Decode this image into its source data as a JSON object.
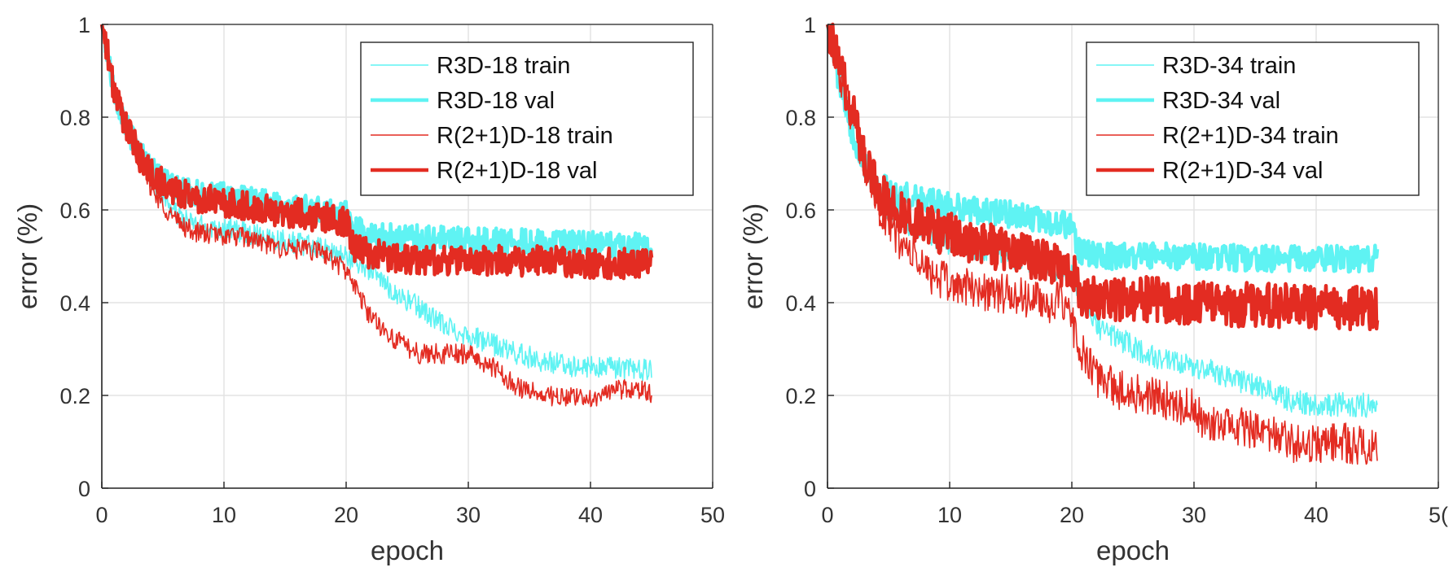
{
  "chart_data": [
    {
      "type": "line",
      "title": "",
      "xlabel": "epoch",
      "ylabel": "error (%)",
      "xlim": [
        0,
        50
      ],
      "ylim": [
        0,
        1
      ],
      "xticks": [
        "0",
        "10",
        "20",
        "30",
        "40",
        "50"
      ],
      "yticks": [
        "0",
        "0.2",
        "0.4",
        "0.6",
        "0.8",
        "1"
      ],
      "grid": true,
      "legend_position": "top-right",
      "series": [
        {
          "name": "R3D-18 train",
          "color": "#5ff3f3",
          "style": "thin",
          "noise": 0.011,
          "points": [
            [
              0,
              1.0
            ],
            [
              1,
              0.86
            ],
            [
              2,
              0.78
            ],
            [
              3,
              0.72
            ],
            [
              4,
              0.67
            ],
            [
              5,
              0.63
            ],
            [
              6,
              0.595
            ],
            [
              7,
              0.575
            ],
            [
              8,
              0.565
            ],
            [
              10,
              0.56
            ],
            [
              12,
              0.55
            ],
            [
              15,
              0.535
            ],
            [
              18,
              0.515
            ],
            [
              20,
              0.5
            ],
            [
              22,
              0.47
            ],
            [
              24,
              0.42
            ],
            [
              26,
              0.39
            ],
            [
              28,
              0.35
            ],
            [
              30,
              0.33
            ],
            [
              32,
              0.31
            ],
            [
              34,
              0.29
            ],
            [
              36,
              0.275
            ],
            [
              38,
              0.265
            ],
            [
              40,
              0.26
            ],
            [
              42,
              0.26
            ],
            [
              44,
              0.255
            ],
            [
              45,
              0.255
            ]
          ]
        },
        {
          "name": "R3D-18 val",
          "color": "#5ff3f3",
          "style": "thick",
          "noise": 0.013,
          "points": [
            [
              0,
              1.0
            ],
            [
              1,
              0.86
            ],
            [
              2,
              0.78
            ],
            [
              3,
              0.73
            ],
            [
              4,
              0.69
            ],
            [
              5,
              0.665
            ],
            [
              6,
              0.645
            ],
            [
              8,
              0.635
            ],
            [
              10,
              0.63
            ],
            [
              12,
              0.62
            ],
            [
              15,
              0.61
            ],
            [
              18,
              0.6
            ],
            [
              20,
              0.59
            ],
            [
              20.6,
              0.56
            ],
            [
              22,
              0.545
            ],
            [
              25,
              0.54
            ],
            [
              30,
              0.535
            ],
            [
              35,
              0.53
            ],
            [
              40,
              0.525
            ],
            [
              45,
              0.52
            ]
          ]
        },
        {
          "name": "R(2+1)D-18 train",
          "color": "#e32c22",
          "style": "thin",
          "noise": 0.01,
          "points": [
            [
              0,
              1.0
            ],
            [
              1,
              0.87
            ],
            [
              2,
              0.78
            ],
            [
              3,
              0.71
            ],
            [
              4,
              0.65
            ],
            [
              5,
              0.61
            ],
            [
              6,
              0.58
            ],
            [
              7,
              0.56
            ],
            [
              8,
              0.55
            ],
            [
              10,
              0.545
            ],
            [
              12,
              0.54
            ],
            [
              14,
              0.52
            ],
            [
              16,
              0.515
            ],
            [
              18,
              0.51
            ],
            [
              20,
              0.47
            ],
            [
              21,
              0.42
            ],
            [
              22,
              0.37
            ],
            [
              24,
              0.32
            ],
            [
              26,
              0.29
            ],
            [
              28,
              0.29
            ],
            [
              30,
              0.29
            ],
            [
              32,
              0.26
            ],
            [
              34,
              0.22
            ],
            [
              36,
              0.2
            ],
            [
              38,
              0.195
            ],
            [
              40,
              0.195
            ],
            [
              42,
              0.21
            ],
            [
              44,
              0.215
            ],
            [
              45,
              0.2
            ]
          ]
        },
        {
          "name": "R(2+1)D-18 val",
          "color": "#e32c22",
          "style": "thick",
          "noise": 0.015,
          "points": [
            [
              0,
              1.0
            ],
            [
              1,
              0.86
            ],
            [
              2,
              0.78
            ],
            [
              3,
              0.72
            ],
            [
              4,
              0.68
            ],
            [
              5,
              0.655
            ],
            [
              6,
              0.64
            ],
            [
              8,
              0.625
            ],
            [
              10,
              0.615
            ],
            [
              12,
              0.605
            ],
            [
              15,
              0.595
            ],
            [
              18,
              0.585
            ],
            [
              20,
              0.575
            ],
            [
              20.6,
              0.52
            ],
            [
              22,
              0.505
            ],
            [
              25,
              0.495
            ],
            [
              30,
              0.49
            ],
            [
              35,
              0.49
            ],
            [
              40,
              0.485
            ],
            [
              45,
              0.485
            ]
          ]
        }
      ]
    },
    {
      "type": "line",
      "title": "",
      "xlabel": "epoch",
      "ylabel": "error (%)",
      "xlim": [
        0,
        50
      ],
      "ylim": [
        0,
        1
      ],
      "xticks": [
        "0",
        "10",
        "20",
        "30",
        "40",
        "5("
      ],
      "yticks": [
        "0",
        "0.2",
        "0.4",
        "0.6",
        "0.8",
        "1"
      ],
      "grid": true,
      "legend_position": "top-right",
      "series": [
        {
          "name": "R3D-34 train",
          "color": "#5ff3f3",
          "style": "thin",
          "noise": 0.012,
          "points": [
            [
              0,
              1.0
            ],
            [
              1,
              0.87
            ],
            [
              2,
              0.77
            ],
            [
              3,
              0.69
            ],
            [
              4,
              0.64
            ],
            [
              5,
              0.6
            ],
            [
              7,
              0.56
            ],
            [
              10,
              0.53
            ],
            [
              12,
              0.515
            ],
            [
              15,
              0.5
            ],
            [
              18,
              0.48
            ],
            [
              20,
              0.46
            ],
            [
              21,
              0.4
            ],
            [
              22,
              0.35
            ],
            [
              24,
              0.32
            ],
            [
              26,
              0.29
            ],
            [
              28,
              0.27
            ],
            [
              30,
              0.26
            ],
            [
              32,
              0.25
            ],
            [
              34,
              0.23
            ],
            [
              36,
              0.21
            ],
            [
              38,
              0.19
            ],
            [
              40,
              0.18
            ],
            [
              42,
              0.18
            ],
            [
              44,
              0.18
            ],
            [
              45,
              0.17
            ]
          ]
        },
        {
          "name": "R3D-34 val",
          "color": "#5ff3f3",
          "style": "thick",
          "noise": 0.013,
          "points": [
            [
              0,
              1.0
            ],
            [
              1,
              0.87
            ],
            [
              2,
              0.77
            ],
            [
              3,
              0.7
            ],
            [
              4,
              0.66
            ],
            [
              5,
              0.64
            ],
            [
              7,
              0.625
            ],
            [
              10,
              0.61
            ],
            [
              12,
              0.6
            ],
            [
              15,
              0.59
            ],
            [
              18,
              0.575
            ],
            [
              20,
              0.565
            ],
            [
              20.6,
              0.51
            ],
            [
              22,
              0.5
            ],
            [
              25,
              0.5
            ],
            [
              30,
              0.5
            ],
            [
              35,
              0.495
            ],
            [
              40,
              0.495
            ],
            [
              45,
              0.495
            ]
          ]
        },
        {
          "name": "R(2+1)D-34 train",
          "color": "#e32c22",
          "style": "thin",
          "noise": 0.02,
          "points": [
            [
              0,
              1.0
            ],
            [
              1,
              0.9
            ],
            [
              2,
              0.8
            ],
            [
              3,
              0.7
            ],
            [
              4,
              0.62
            ],
            [
              5,
              0.57
            ],
            [
              6,
              0.53
            ],
            [
              8,
              0.47
            ],
            [
              10,
              0.44
            ],
            [
              12,
              0.43
            ],
            [
              14,
              0.42
            ],
            [
              16,
              0.41
            ],
            [
              18,
              0.4
            ],
            [
              19,
              0.4
            ],
            [
              20,
              0.36
            ],
            [
              21,
              0.28
            ],
            [
              22,
              0.24
            ],
            [
              24,
              0.21
            ],
            [
              26,
              0.2
            ],
            [
              28,
              0.19
            ],
            [
              30,
              0.17
            ],
            [
              31,
              0.13
            ],
            [
              33,
              0.14
            ],
            [
              35,
              0.12
            ],
            [
              38,
              0.1
            ],
            [
              40,
              0.09
            ],
            [
              42,
              0.1
            ],
            [
              44,
              0.09
            ],
            [
              45,
              0.1
            ]
          ]
        },
        {
          "name": "R(2+1)D-34 val",
          "color": "#e32c22",
          "style": "thick",
          "noise": 0.022,
          "points": [
            [
              0,
              1.0
            ],
            [
              1,
              0.9
            ],
            [
              2,
              0.82
            ],
            [
              3,
              0.72
            ],
            [
              4,
              0.65
            ],
            [
              5,
              0.61
            ],
            [
              7,
              0.58
            ],
            [
              10,
              0.545
            ],
            [
              12,
              0.53
            ],
            [
              15,
              0.51
            ],
            [
              18,
              0.49
            ],
            [
              20,
              0.475
            ],
            [
              20.6,
              0.42
            ],
            [
              22,
              0.41
            ],
            [
              25,
              0.41
            ],
            [
              30,
              0.4
            ],
            [
              35,
              0.395
            ],
            [
              40,
              0.39
            ],
            [
              45,
              0.39
            ]
          ]
        }
      ]
    }
  ]
}
